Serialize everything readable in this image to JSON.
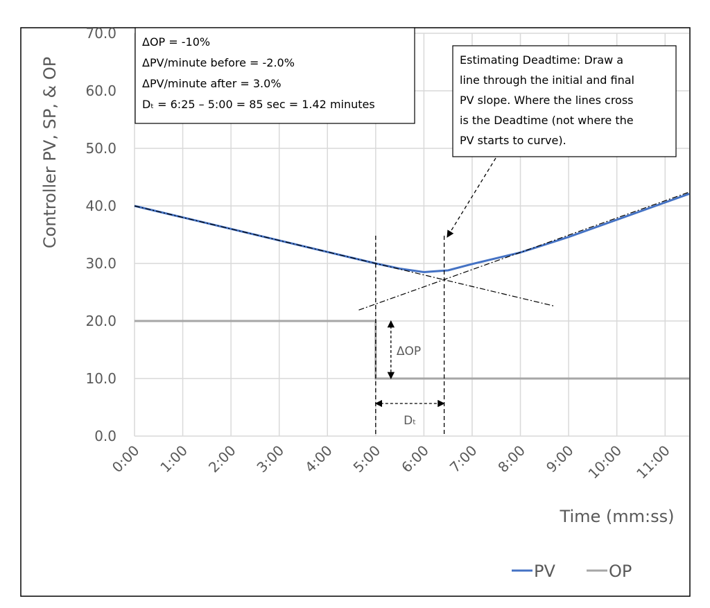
{
  "chart_data": {
    "type": "line",
    "y_label": "Controller PV, SP, & OP",
    "x_label": "Time (mm:ss)",
    "series": [
      {
        "name": "PV",
        "color": "#4472c4",
        "x": [
          0,
          1,
          2,
          3,
          4,
          5,
          5.5,
          6,
          6.5,
          7,
          8,
          9,
          10,
          11,
          11.5
        ],
        "values": [
          40,
          38,
          36,
          34,
          32,
          30,
          29.1,
          28.5,
          28.8,
          29.9,
          31.9,
          34.6,
          37.6,
          40.6,
          42.1
        ]
      },
      {
        "name": "OP",
        "color": "#a6a6a6",
        "x": [
          0,
          5,
          5,
          11.5
        ],
        "values": [
          20,
          20,
          10,
          10
        ]
      }
    ],
    "trend_lines": [
      {
        "x": [
          0,
          8.7
        ],
        "values": [
          40,
          22.6
        ]
      },
      {
        "x": [
          4.65,
          11.5
        ],
        "values": [
          21.9,
          42.4
        ]
      }
    ],
    "vlines": [
      5,
      6.42
    ],
    "xlim": [
      0,
      11.5
    ],
    "ylim": [
      0,
      70
    ],
    "xticks": [
      {
        "value": 0,
        "label": "0:00"
      },
      {
        "value": 1,
        "label": "1:00"
      },
      {
        "value": 2,
        "label": "2:00"
      },
      {
        "value": 3,
        "label": "3:00"
      },
      {
        "value": 4,
        "label": "4:00"
      },
      {
        "value": 5,
        "label": "5:00"
      },
      {
        "value": 6,
        "label": "6:00"
      },
      {
        "value": 7,
        "label": "7:00"
      },
      {
        "value": 8,
        "label": "8:00"
      },
      {
        "value": 9,
        "label": "9:00"
      },
      {
        "value": 10,
        "label": "10:00"
      },
      {
        "value": 11,
        "label": "11:00"
      }
    ],
    "yticks": [
      {
        "value": 0,
        "label": "0.0"
      },
      {
        "value": 10,
        "label": "10.0"
      },
      {
        "value": 20,
        "label": "20.0"
      },
      {
        "value": 30,
        "label": "30.0"
      },
      {
        "value": 40,
        "label": "40.0"
      },
      {
        "value": 50,
        "label": "50.0"
      },
      {
        "value": 60,
        "label": "60.0"
      },
      {
        "value": 70,
        "label": "70.0"
      }
    ],
    "grid": true,
    "delta_op_label": "ΔOP",
    "dt_label": "Dₜ",
    "summary_box": [
      "ΔOP = -10%",
      "ΔPV/minute before = -2.0%",
      "ΔPV/minute after = 3.0%",
      "Dₜ = 6:25 – 5:00 = 85 sec = 1.42 minutes"
    ],
    "note_box": [
      "Estimating Deadtime:  Draw a",
      "line through the initial and final",
      "PV slope.  Where the lines cross",
      "is the Deadtime (not where the",
      "PV starts to curve)."
    ]
  }
}
